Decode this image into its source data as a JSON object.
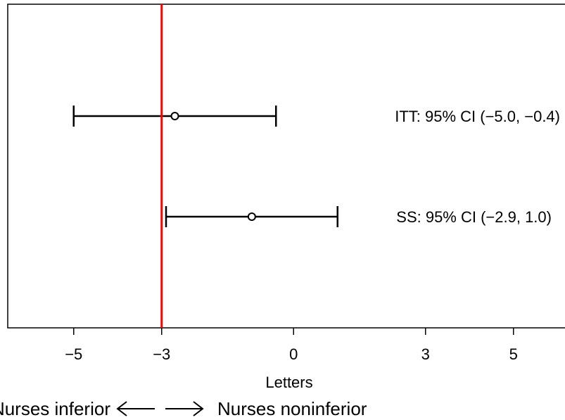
{
  "chart_data": {
    "type": "forest",
    "xlabel": "Letters",
    "xlim": [
      -6.5,
      6.3
    ],
    "xticks": [
      -5,
      -3,
      0,
      3,
      5
    ],
    "xtick_labels": [
      "−5",
      "−3",
      "0",
      "3",
      "5"
    ],
    "reference_line": {
      "x": -3,
      "color": "#ff0000"
    },
    "rows": [
      {
        "estimate": -2.7,
        "lower": -5.0,
        "upper": -0.4,
        "label": "ITT: 95% CI (−5.0, −0.4)"
      },
      {
        "estimate": -0.95,
        "lower": -2.9,
        "upper": 1.0,
        "label": "SS: 95% CI (−2.9, 1.0)"
      }
    ],
    "direction_labels": {
      "left": "Nurses inferior",
      "right": "Nurses noninferior"
    }
  }
}
